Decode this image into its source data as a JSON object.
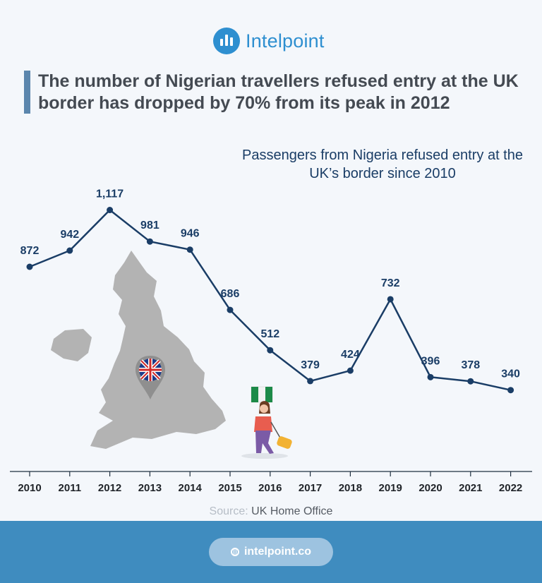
{
  "brand": {
    "name": "Intelpoint"
  },
  "headline": "The number of Nigerian travellers refused entry at the UK border has dropped by 70% from its peak in 2012",
  "chart_data": {
    "type": "line",
    "title": "Passengers from Nigeria refused entry at the UK’s border since 2010",
    "categories": [
      "2010",
      "2011",
      "2012",
      "2013",
      "2014",
      "2015",
      "2016",
      "2017",
      "2018",
      "2019",
      "2020",
      "2021",
      "2022"
    ],
    "series": [
      {
        "values": [
          872,
          942,
          1117,
          981,
          946,
          686,
          512,
          379,
          424,
          732,
          396,
          378,
          340
        ]
      }
    ],
    "data_labels": [
      "872",
      "942",
      "1,117",
      "981",
      "946",
      "686",
      "512",
      "379",
      "424",
      "732",
      "396",
      "378",
      "340"
    ],
    "grid": false,
    "line_color": "#1a3d66"
  },
  "illustrations": [
    "uk-map-with-flag-pin",
    "nigerian-traveller-with-suitcase"
  ],
  "source": {
    "label": "Source:",
    "value": "UK Home Office"
  },
  "footer": {
    "url": "intelpoint.co"
  }
}
